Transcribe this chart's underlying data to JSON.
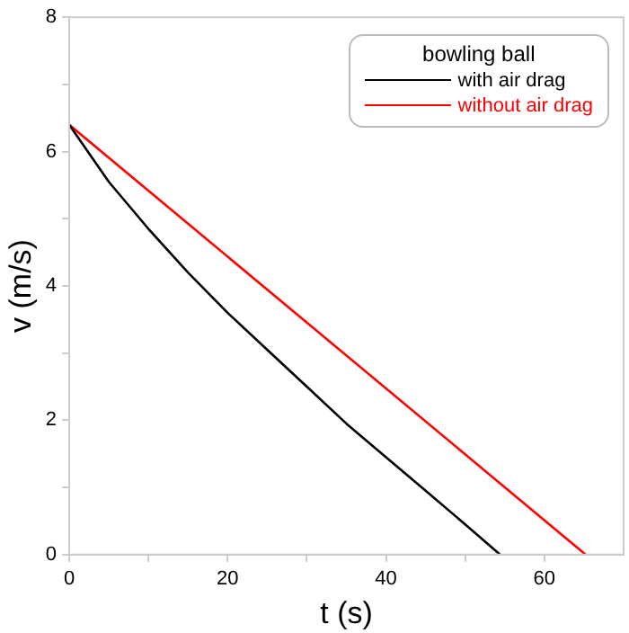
{
  "chart_data": {
    "type": "line",
    "xlabel": "t (s)",
    "ylabel": "v (m/s)",
    "legend_title": "bowling ball",
    "legend": "top right",
    "grid": false,
    "marker": "none",
    "line_style": "solid",
    "xlim": [
      0,
      70
    ],
    "xticks": [
      0,
      {
        "value": 10,
        "label": null
      },
      20,
      {
        "value": 30,
        "label": null
      },
      40,
      {
        "value": 50,
        "label": null
      },
      60
    ],
    "ylim": [
      0,
      8
    ],
    "yticks": [
      0,
      {
        "value": 1,
        "label": null
      },
      2,
      {
        "value": 3,
        "label": null
      },
      4,
      {
        "value": 5,
        "label": null
      },
      6,
      {
        "value": 7,
        "label": null
      },
      8
    ],
    "series": [
      {
        "name": "with air drag",
        "color": "#000000",
        "x": [
          0,
          5,
          10,
          15,
          20,
          25,
          30,
          35,
          40,
          45,
          50,
          54.4
        ],
        "values": [
          6.4,
          5.55,
          4.85,
          4.2,
          3.6,
          3.05,
          2.5,
          1.95,
          1.45,
          0.95,
          0.45,
          0
        ]
      },
      {
        "name": "without air drag",
        "color": "#ff0000",
        "x": [
          0,
          65.2
        ],
        "values": [
          6.4,
          0
        ]
      }
    ]
  }
}
